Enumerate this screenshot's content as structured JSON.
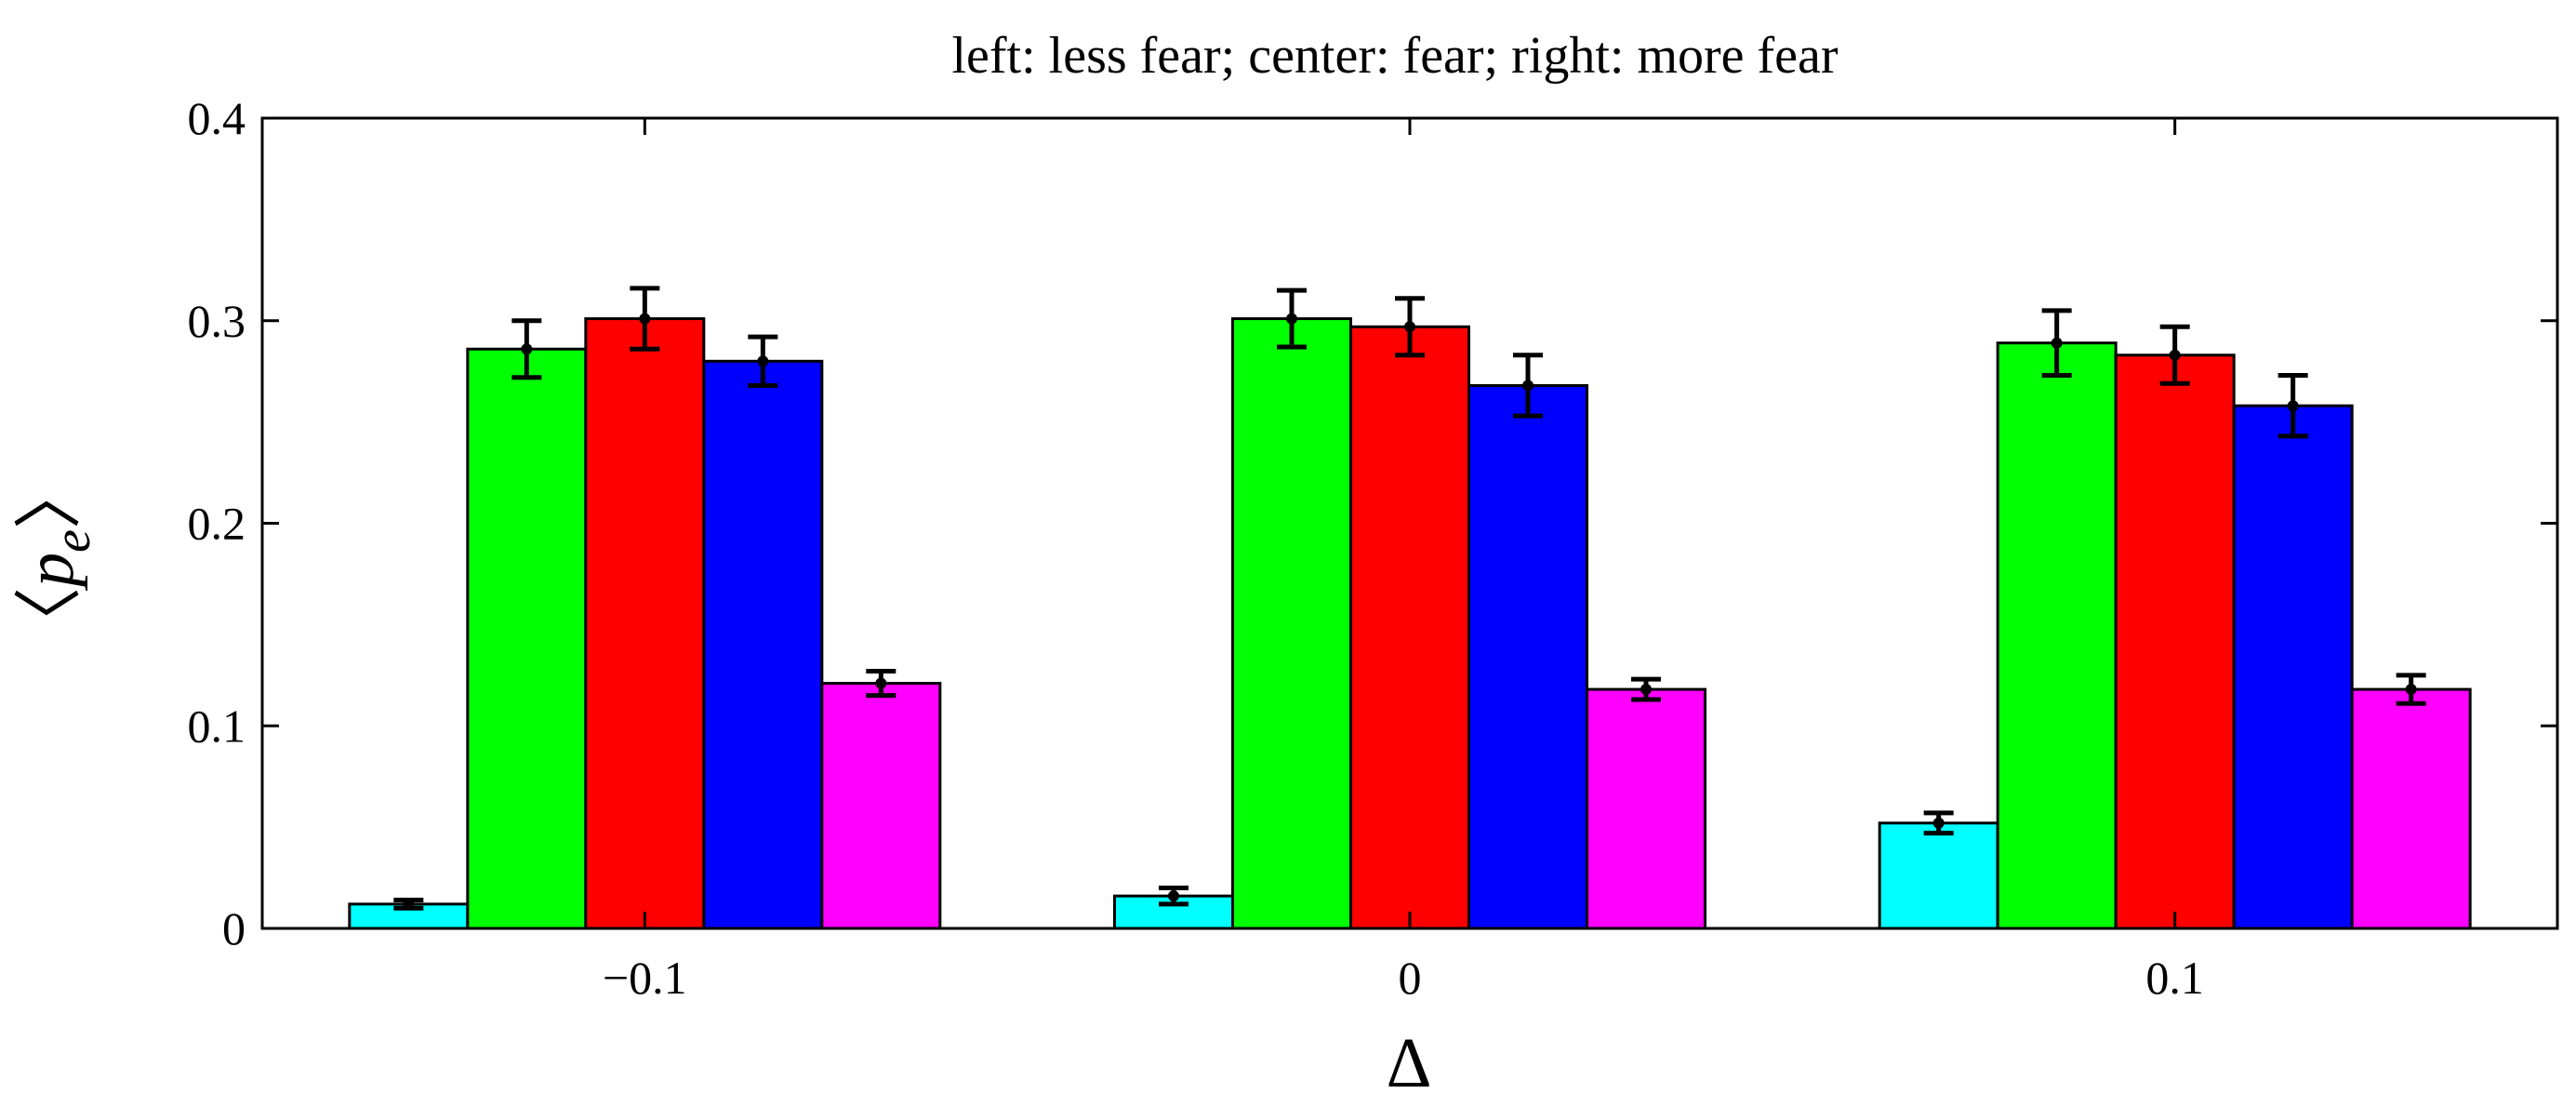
{
  "chart_data": {
    "type": "bar",
    "title": "left: less fear; center: fear; right: more fear",
    "xlabel": "Δ",
    "ylabel": {
      "open": "〈",
      "symbol": "p",
      "subscript": "e",
      "close": "〉"
    },
    "categories": [
      "−0.1",
      "0",
      "0.1"
    ],
    "ylim": [
      0,
      0.4
    ],
    "yticks": [
      0,
      0.1,
      0.2,
      0.3,
      0.4
    ],
    "ytick_labels": [
      "0",
      "0.1",
      "0.2",
      "0.3",
      "0.4"
    ],
    "grid": false,
    "legend": "none",
    "series": [
      {
        "color": "#00ffff",
        "values": [
          0.012,
          0.016,
          0.052
        ],
        "errors": [
          0.002,
          0.004,
          0.005
        ]
      },
      {
        "color": "#00ff00",
        "values": [
          0.286,
          0.301,
          0.289
        ],
        "errors": [
          0.014,
          0.014,
          0.016
        ]
      },
      {
        "color": "#ff0000",
        "values": [
          0.301,
          0.297,
          0.283
        ],
        "errors": [
          0.015,
          0.014,
          0.014
        ]
      },
      {
        "color": "#0000ff",
        "values": [
          0.28,
          0.268,
          0.258
        ],
        "errors": [
          0.012,
          0.015,
          0.015
        ]
      },
      {
        "color": "#ff00ff",
        "values": [
          0.121,
          0.118,
          0.118
        ],
        "errors": [
          0.006,
          0.005,
          0.007
        ]
      }
    ]
  }
}
